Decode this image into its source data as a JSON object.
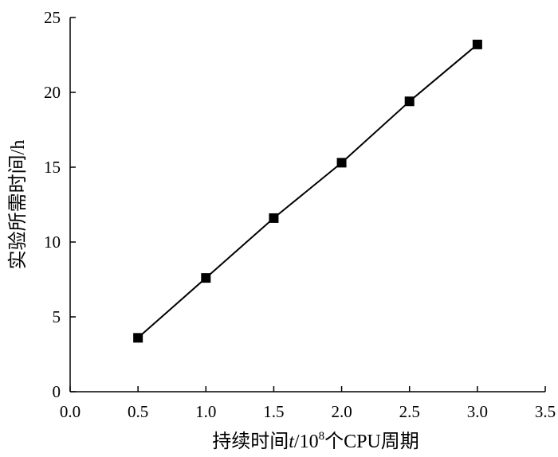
{
  "chart_data": {
    "type": "line",
    "title": "",
    "xlabel": {
      "prefix": "持续时间",
      "variable": "t",
      "slash_ten": "/10",
      "exponent": "8",
      "suffix": "个CPU周期"
    },
    "ylabel": "实验所需时间/h",
    "xlim": [
      0.0,
      3.5
    ],
    "ylim": [
      0,
      25
    ],
    "x_ticks": [
      0.0,
      0.5,
      1.0,
      1.5,
      2.0,
      2.5,
      3.0,
      3.5
    ],
    "x_tick_labels": [
      "0.0",
      "0.5",
      "1.0",
      "1.5",
      "2.0",
      "2.5",
      "3.0",
      "3.5"
    ],
    "y_ticks": [
      0,
      5,
      10,
      15,
      20,
      25
    ],
    "y_tick_labels": [
      "0",
      "5",
      "10",
      "15",
      "20",
      "25"
    ],
    "grid": false,
    "legend": "none",
    "series": [
      {
        "marker": "square",
        "color": "#000000",
        "x": [
          0.5,
          1.0,
          1.5,
          2.0,
          2.5,
          3.0
        ],
        "y": [
          3.6,
          7.6,
          11.6,
          15.3,
          19.4,
          23.2
        ]
      }
    ]
  }
}
